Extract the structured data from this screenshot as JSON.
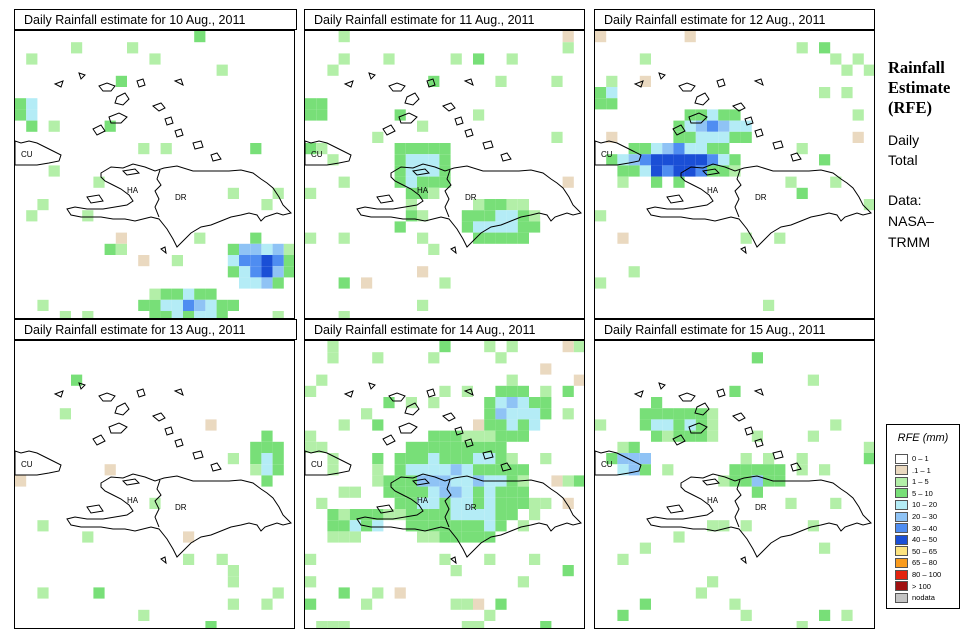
{
  "panels": [
    {
      "title": "Daily Rainfall estimate for  10 Aug., 2011",
      "seed": 11,
      "rain": [
        [
          0.88,
          0.8,
          0.13,
          0.09,
          6
        ],
        [
          0.62,
          0.95,
          0.18,
          0.06,
          4
        ],
        [
          0.05,
          0.28,
          0.05,
          0.05,
          3
        ]
      ],
      "bg": 0.04
    },
    {
      "title": "Daily Rainfall estimate for  11 Aug., 2011",
      "seed": 23,
      "rain": [
        [
          0.42,
          0.47,
          0.12,
          0.1,
          3
        ],
        [
          0.7,
          0.66,
          0.14,
          0.08,
          3
        ],
        [
          0.05,
          0.26,
          0.05,
          0.04,
          2
        ]
      ],
      "bg": 0.07
    },
    {
      "title": "Daily Rainfall estimate for  12 Aug., 2011",
      "seed": 37,
      "rain": [
        [
          0.28,
          0.45,
          0.25,
          0.07,
          6
        ],
        [
          0.42,
          0.33,
          0.16,
          0.06,
          4
        ],
        [
          0.05,
          0.22,
          0.05,
          0.05,
          3
        ]
      ],
      "bg": 0.06
    },
    {
      "title": "Daily Rainfall estimate for  13 Aug., 2011",
      "seed": 41,
      "rain": [
        [
          0.9,
          0.4,
          0.06,
          0.09,
          2
        ]
      ],
      "bg": 0.025
    },
    {
      "title": "Daily Rainfall estimate for  14 Aug., 2011",
      "seed": 53,
      "rain": [
        [
          0.55,
          0.5,
          0.26,
          0.2,
          3
        ],
        [
          0.2,
          0.62,
          0.12,
          0.06,
          2
        ],
        [
          0.75,
          0.25,
          0.12,
          0.1,
          3
        ]
      ],
      "bg": 0.14
    },
    {
      "title": "Daily Rainfall estimate for  15 Aug., 2011",
      "seed": 67,
      "rain": [
        [
          0.13,
          0.41,
          0.09,
          0.05,
          4
        ],
        [
          0.58,
          0.47,
          0.1,
          0.05,
          3
        ],
        [
          0.3,
          0.28,
          0.15,
          0.06,
          2
        ]
      ],
      "bg": 0.07
    }
  ],
  "place_labels": {
    "cuba": "CU",
    "haiti": "HA",
    "dr": "DR"
  },
  "side_panel": {
    "title_lines": [
      "Rainfall",
      "Estimate",
      "(RFE)"
    ],
    "period_lines": [
      "Daily",
      "Total"
    ],
    "source_lines": [
      "Data:",
      "NASA–",
      "TRMM"
    ]
  },
  "legend": {
    "title": "RFE (mm)",
    "items": [
      {
        "label": "0 – 1",
        "color": "#ffffff"
      },
      {
        "label": ".1 – 1",
        "color": "#ead9c0"
      },
      {
        "label": "1 – 5",
        "color": "#b3efa8"
      },
      {
        "label": "5 – 10",
        "color": "#78df78"
      },
      {
        "label": "10 – 20",
        "color": "#b4ecf6"
      },
      {
        "label": "20 – 30",
        "color": "#8fc3f5"
      },
      {
        "label": "30 – 40",
        "color": "#4f8df1"
      },
      {
        "label": "40 – 50",
        "color": "#1a4fd6"
      },
      {
        "label": "50 – 65",
        "color": "#fde480"
      },
      {
        "label": "65 – 80",
        "color": "#f99b1d"
      },
      {
        "label": "80 – 100",
        "color": "#e3230e"
      },
      {
        "label": "> 100",
        "color": "#a01010"
      },
      {
        "label": "nodata",
        "color": "#c4c4c4"
      }
    ]
  }
}
